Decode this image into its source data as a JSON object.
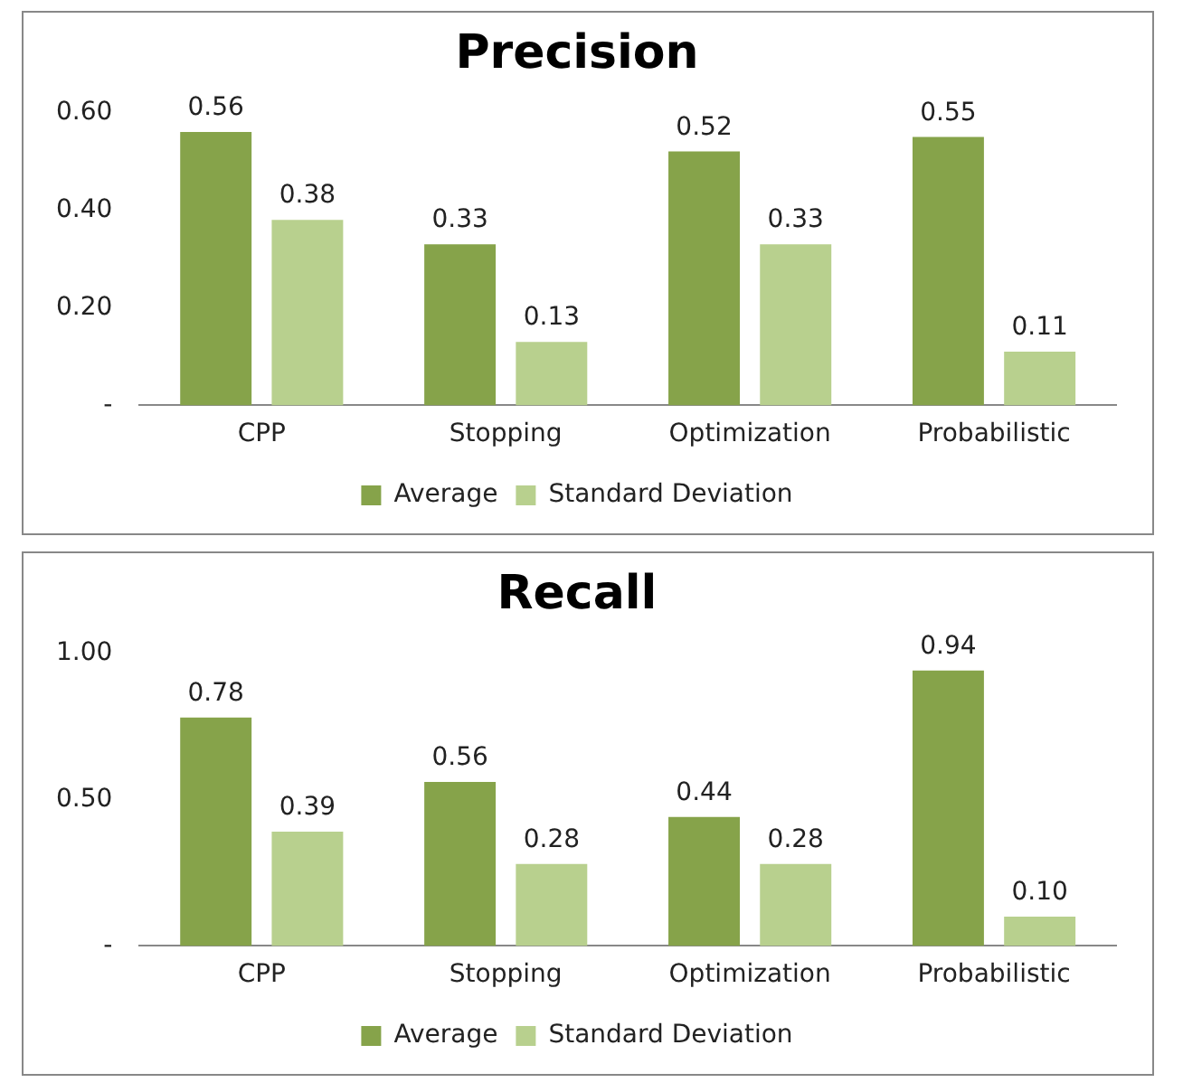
{
  "chart_data": [
    {
      "type": "bar",
      "title": "Precision",
      "categories": [
        "CPP",
        "Stopping",
        "Optimization",
        "Probabilistic"
      ],
      "series": [
        {
          "name": "Average",
          "color": "#86a34a",
          "values": [
            0.56,
            0.33,
            0.52,
            0.55
          ],
          "value_labels": [
            "0.56",
            "0.33",
            "0.52",
            "0.55"
          ]
        },
        {
          "name": "Standard Deviation",
          "color": "#b8d08e",
          "values": [
            0.38,
            0.13,
            0.33,
            0.11
          ],
          "value_labels": [
            "0.38",
            "0.13",
            "0.33",
            "0.11"
          ]
        }
      ],
      "ylim": [
        0,
        0.6
      ],
      "yticks": [
        {
          "value": 0,
          "label": "-"
        },
        {
          "value": 0.2,
          "label": "0.20"
        },
        {
          "value": 0.4,
          "label": "0.40"
        },
        {
          "value": 0.6,
          "label": "0.60"
        }
      ],
      "grid": false,
      "legend": "bottom"
    },
    {
      "type": "bar",
      "title": "Recall",
      "categories": [
        "CPP",
        "Stopping",
        "Optimization",
        "Probabilistic"
      ],
      "series": [
        {
          "name": "Average",
          "color": "#86a34a",
          "values": [
            0.78,
            0.56,
            0.44,
            0.94
          ],
          "value_labels": [
            "0.78",
            "0.56",
            "0.44",
            "0.94"
          ]
        },
        {
          "name": "Standard Deviation",
          "color": "#b8d08e",
          "values": [
            0.39,
            0.28,
            0.28,
            0.1
          ],
          "value_labels": [
            "0.39",
            "0.28",
            "0.28",
            "0.10"
          ]
        }
      ],
      "ylim": [
        0,
        1
      ],
      "yticks": [
        {
          "value": 0,
          "label": "-"
        },
        {
          "value": 0.5,
          "label": "0.50"
        },
        {
          "value": 1,
          "label": "1.00"
        }
      ],
      "grid": false,
      "legend": "bottom"
    }
  ]
}
